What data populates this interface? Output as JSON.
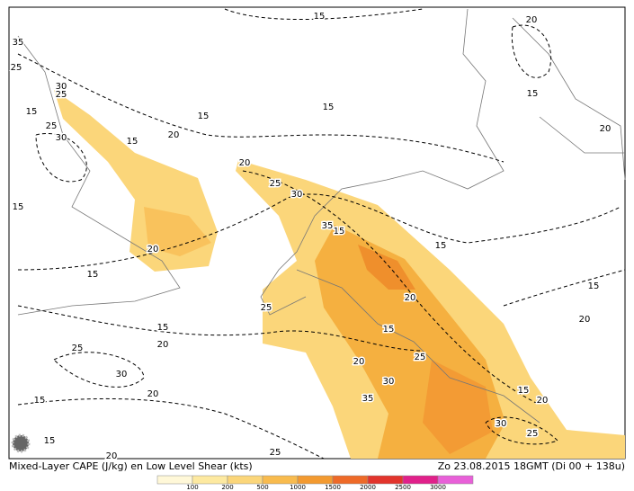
{
  "caption": "Mixed-Layer CAPE (J/kg) en Low Level Shear (kts)",
  "timestamp": "Zo 23.08.2015 18GMT (Di 00 + 138u)",
  "contour_labels": [
    "15",
    "35",
    "25",
    "30",
    "25",
    "15",
    "15",
    "15",
    "25",
    "30",
    "15",
    "20",
    "20",
    "15",
    "20",
    "20",
    "25",
    "30",
    "35",
    "15",
    "15",
    "20",
    "15",
    "15",
    "20",
    "15",
    "20",
    "25",
    "15",
    "15",
    "20",
    "25",
    "30",
    "25",
    "20",
    "30",
    "20",
    "15",
    "15",
    "20",
    "35",
    "30",
    "25",
    "15",
    "20",
    "25"
  ],
  "legend": {
    "ticks": [
      "100",
      "200",
      "500",
      "1000",
      "1500",
      "2000",
      "2500",
      "3000"
    ]
  }
}
